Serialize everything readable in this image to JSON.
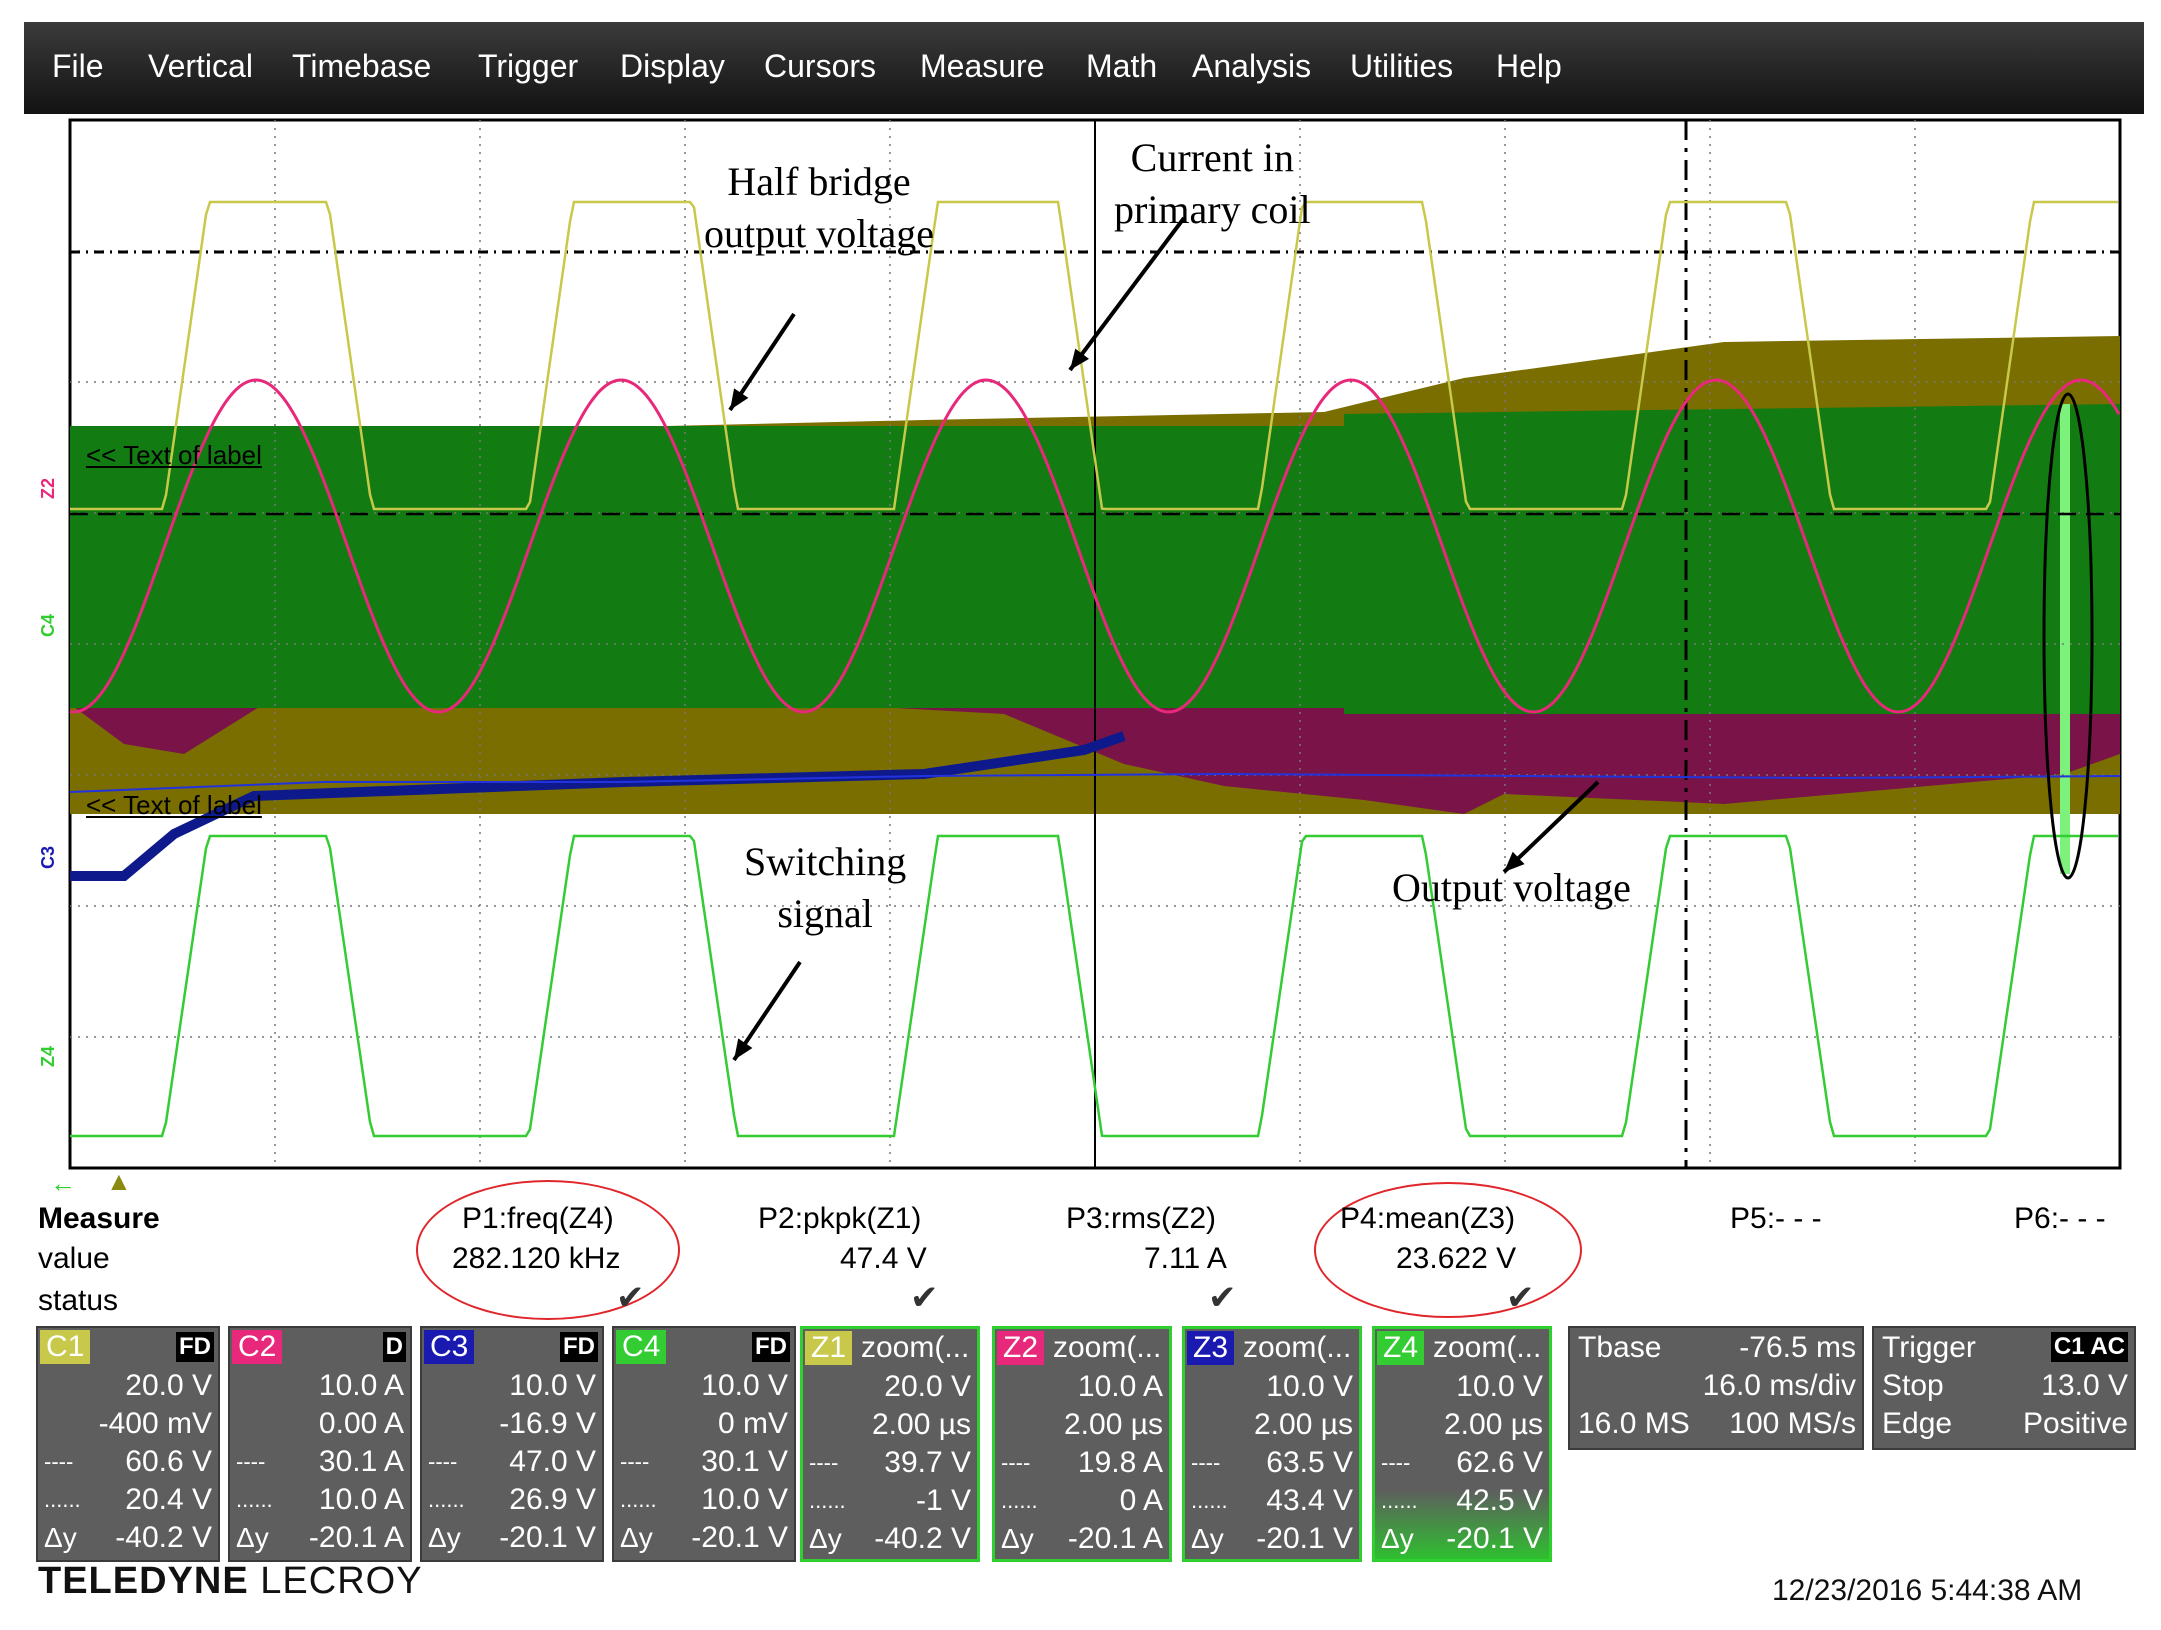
{
  "menu": [
    "File",
    "Vertical",
    "Timebase",
    "Trigger",
    "Display",
    "Cursors",
    "Measure",
    "Math",
    "Analysis",
    "Utilities",
    "Help"
  ],
  "annotations": {
    "half_bridge": "Half bridge\noutput voltage",
    "current": "Current in\nprimary coil",
    "switching": "Switching\nsignal",
    "output": "Output voltage"
  },
  "labels": {
    "label1": "<< Text of label",
    "label2": "<< Text of label"
  },
  "trace_tags": {
    "z2": "Z2",
    "c4": "C4",
    "c3": "C3",
    "z4": "Z4"
  },
  "colors": {
    "c1": "#c8c84a",
    "c2": "#e8287a",
    "c3": "#1a1ab0",
    "c4": "#33cc33",
    "green_band": "#127c12",
    "maroon_band": "#7a1448",
    "olive_band": "#7a6e00"
  },
  "measure": {
    "headers": [
      "Measure",
      "value",
      "status"
    ],
    "params": [
      {
        "name": "P1:freq(Z4)",
        "value": "282.120 kHz",
        "status": "✔"
      },
      {
        "name": "P2:pkpk(Z1)",
        "value": "47.4 V",
        "status": "✔"
      },
      {
        "name": "P3:rms(Z2)",
        "value": "7.11 A",
        "status": "✔"
      },
      {
        "name": "P4:mean(Z3)",
        "value": "23.622 V",
        "status": "✔"
      },
      {
        "name": "P5:- - -",
        "value": "",
        "status": ""
      },
      {
        "name": "P6:- - -",
        "value": "",
        "status": ""
      }
    ]
  },
  "channels": [
    {
      "tag": "C1",
      "flag": "FD",
      "title": "",
      "color": "#c8c84a",
      "rows": [
        "20.0 V",
        "-400 mV",
        "60.6 V",
        "20.4 V",
        "-40.2 V"
      ]
    },
    {
      "tag": "C2",
      "flag": "D",
      "title": "",
      "color": "#e8287a",
      "rows": [
        "10.0 A",
        "0.00 A",
        "30.1 A",
        "10.0 A",
        "-20.1 A"
      ]
    },
    {
      "tag": "C3",
      "flag": "FD",
      "title": "",
      "color": "#1a1ab0",
      "rows": [
        "10.0 V",
        "-16.9 V",
        "47.0 V",
        "26.9 V",
        "-20.1 V"
      ]
    },
    {
      "tag": "C4",
      "flag": "FD",
      "title": "",
      "color": "#33cc33",
      "rows": [
        "10.0 V",
        "0 mV",
        "30.1 V",
        "10.0 V",
        "-20.1 V"
      ]
    },
    {
      "tag": "Z1",
      "flag": "",
      "title": "zoom(...",
      "color": "#c8c84a",
      "rows": [
        "20.0 V",
        "2.00 µs",
        "39.7 V",
        "-1 V",
        "-40.2 V"
      ]
    },
    {
      "tag": "Z2",
      "flag": "",
      "title": "zoom(...",
      "color": "#e8287a",
      "rows": [
        "10.0 A",
        "2.00 µs",
        "19.8 A",
        "0 A",
        "-20.1 A"
      ]
    },
    {
      "tag": "Z3",
      "flag": "",
      "title": "zoom(...",
      "color": "#1a1ab0",
      "rows": [
        "10.0 V",
        "2.00 µs",
        "63.5 V",
        "43.4 V",
        "-20.1 V"
      ]
    },
    {
      "tag": "Z4",
      "flag": "",
      "title": "zoom(...",
      "color": "#33cc33",
      "rows": [
        "10.0 V",
        "2.00 µs",
        "62.6 V",
        "42.5 V",
        "-20.1 V"
      ]
    }
  ],
  "row_prefix": [
    "",
    "",
    "----",
    "......",
    "Δy"
  ],
  "timebase": {
    "title": "Tbase",
    "offset": "-76.5 ms",
    "div": "16.0 ms/div",
    "samples": "16.0 MS",
    "rate": "100 MS/s"
  },
  "trigger": {
    "title": "Trigger",
    "flag": "C1 AC",
    "mode": "Stop",
    "level": "13.0 V",
    "type": "Edge",
    "slope": "Positive"
  },
  "brand": {
    "bold": "TELEDYNE",
    "normal": "LECROY"
  },
  "timestamp": "12/23/2016 5:44:38 AM"
}
